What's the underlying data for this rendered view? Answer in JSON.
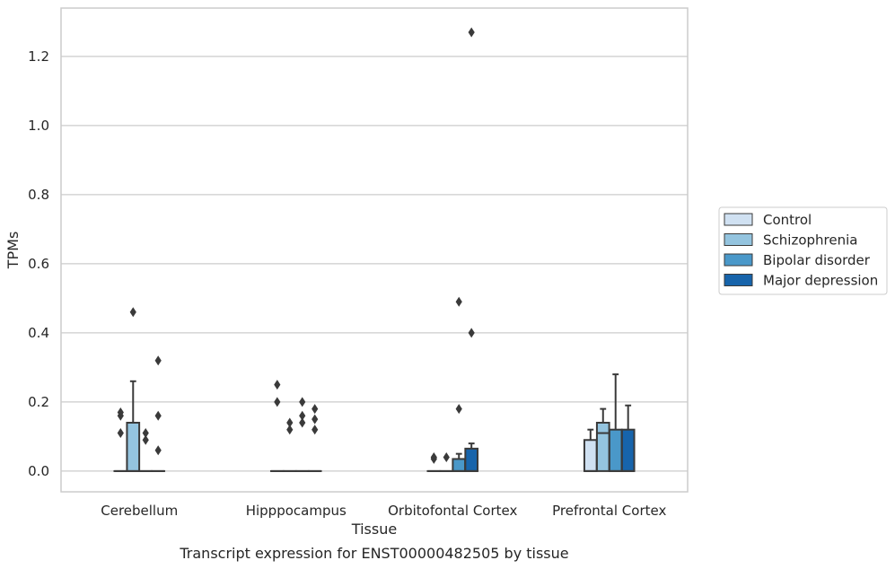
{
  "chart_data": {
    "type": "box",
    "xlabel": "Tissue",
    "ylabel": "TPMs",
    "caption": "Transcript expression for ENST00000482505 by tissue",
    "ylim": [
      -0.06,
      1.34
    ],
    "yticks": [
      "0.0",
      "0.2",
      "0.4",
      "0.6",
      "0.8",
      "1.0",
      "1.2"
    ],
    "grid": true,
    "legend_position": "right",
    "categories": [
      "Cerebellum",
      "Hipppocampus",
      "Orbitofontal Cortex",
      "Prefrontal Cortex"
    ],
    "series": [
      {
        "name": "Control",
        "color": "#d0e1f2",
        "boxes": [
          {
            "q1": 0,
            "median": 0,
            "q3": 0,
            "whisker_low": 0,
            "whisker_high": 0,
            "outliers": [
              0.11,
              0.16,
              0.17
            ]
          },
          {
            "q1": 0,
            "median": 0,
            "q3": 0,
            "whisker_low": 0,
            "whisker_high": 0,
            "outliers": [
              0.2,
              0.25
            ]
          },
          {
            "q1": 0,
            "median": 0,
            "q3": 0,
            "whisker_low": 0,
            "whisker_high": 0,
            "outliers": [
              0.035,
              0.04
            ]
          },
          {
            "q1": 0,
            "median": 0,
            "q3": 0.09,
            "whisker_low": 0,
            "whisker_high": 0.12,
            "outliers": []
          }
        ]
      },
      {
        "name": "Schizophrenia",
        "color": "#94c4df",
        "boxes": [
          {
            "q1": 0,
            "median": 0,
            "q3": 0.14,
            "whisker_low": 0,
            "whisker_high": 0.26,
            "outliers": [
              0.46
            ]
          },
          {
            "q1": 0,
            "median": 0,
            "q3": 0,
            "whisker_low": 0,
            "whisker_high": 0,
            "outliers": [
              0.12,
              0.14
            ]
          },
          {
            "q1": 0,
            "median": 0,
            "q3": 0,
            "whisker_low": 0,
            "whisker_high": 0,
            "outliers": [
              0.04
            ]
          },
          {
            "q1": 0,
            "median": 0.11,
            "q3": 0.14,
            "whisker_low": 0,
            "whisker_high": 0.18,
            "outliers": []
          }
        ]
      },
      {
        "name": "Bipolar disorder",
        "color": "#4a98c9",
        "boxes": [
          {
            "q1": 0,
            "median": 0,
            "q3": 0,
            "whisker_low": 0,
            "whisker_high": 0,
            "outliers": [
              0.09,
              0.11
            ]
          },
          {
            "q1": 0,
            "median": 0,
            "q3": 0,
            "whisker_low": 0,
            "whisker_high": 0,
            "outliers": [
              0.14,
              0.16,
              0.2
            ]
          },
          {
            "q1": 0,
            "median": 0,
            "q3": 0.035,
            "whisker_low": 0,
            "whisker_high": 0.05,
            "outliers": [
              0.18,
              0.49
            ]
          },
          {
            "q1": 0,
            "median": 0,
            "q3": 0.12,
            "whisker_low": 0,
            "whisker_high": 0.28,
            "outliers": []
          }
        ]
      },
      {
        "name": "Major depression",
        "color": "#1764ab",
        "boxes": [
          {
            "q1": 0,
            "median": 0,
            "q3": 0,
            "whisker_low": 0,
            "whisker_high": 0,
            "outliers": [
              0.06,
              0.16,
              0.32
            ]
          },
          {
            "q1": 0,
            "median": 0,
            "q3": 0,
            "whisker_low": 0,
            "whisker_high": 0,
            "outliers": [
              0.12,
              0.15,
              0.18
            ]
          },
          {
            "q1": 0,
            "median": 0,
            "q3": 0.065,
            "whisker_low": 0,
            "whisker_high": 0.08,
            "outliers": [
              0.4,
              1.27
            ]
          },
          {
            "q1": 0,
            "median": 0,
            "q3": 0.12,
            "whisker_low": 0,
            "whisker_high": 0.19,
            "outliers": []
          }
        ]
      }
    ]
  }
}
